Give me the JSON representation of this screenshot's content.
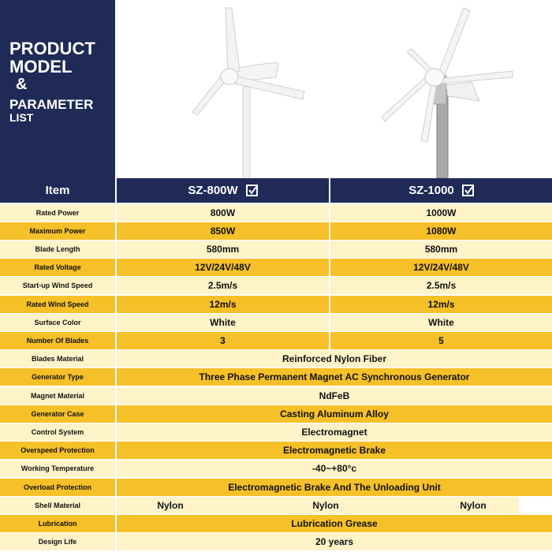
{
  "title": {
    "line1": "PRODUCT",
    "line2": "MODEL",
    "line3": "&",
    "line4": "PARAMETER",
    "line5": "LIST"
  },
  "colors": {
    "navy": "#1f2a57",
    "light_row": "#fff3c9",
    "dark_row": "#f6c028"
  },
  "header": {
    "item": "Item",
    "model1": "SZ-800W",
    "model2": "SZ-1000"
  },
  "rows": [
    {
      "label": "Rated Power",
      "v1": "800W",
      "v2": "1000W"
    },
    {
      "label": "Maximum Power",
      "v1": "850W",
      "v2": "1080W"
    },
    {
      "label": "Blade Length",
      "v1": "580mm",
      "v2": "580mm"
    },
    {
      "label": "Rated Voltage",
      "v1": "12V/24V/48V",
      "v2": "12V/24V/48V"
    },
    {
      "label": "Start-up Wind Speed",
      "v1": "2.5m/s",
      "v2": "2.5m/s"
    },
    {
      "label": "Rated Wind Speed",
      "v1": "12m/s",
      "v2": "12m/s"
    },
    {
      "label": "Surface Color",
      "v1": "White",
      "v2": "White"
    },
    {
      "label": "Number Of Blades",
      "v1": "3",
      "v2": "5"
    },
    {
      "label": "Blades Material",
      "v": "Reinforced Nylon Fiber"
    },
    {
      "label": "Generator Type",
      "v": "Three Phase Permanent Magnet AC Synchronous Generator"
    },
    {
      "label": "Magnet Material",
      "v": "NdFeB"
    },
    {
      "label": "Generator Case",
      "v": "Casting Aluminum Alloy"
    },
    {
      "label": "Control System",
      "v": "Electromagnet"
    },
    {
      "label": "Overspeed Protection",
      "v": "Electromagnetic Brake"
    },
    {
      "label": "Working Temperature",
      "v": "-40~+80°c"
    },
    {
      "label": "Overload Protection",
      "v": "Electromagnetic Brake And The Unloading Unit"
    },
    {
      "label": "Shell Material",
      "s1": "Nylon",
      "s2": "Nylon",
      "s3": "Nylon"
    },
    {
      "label": "Lubrication",
      "v": "Lubrication  Grease"
    },
    {
      "label": "Design Life",
      "v": "20 years"
    }
  ]
}
